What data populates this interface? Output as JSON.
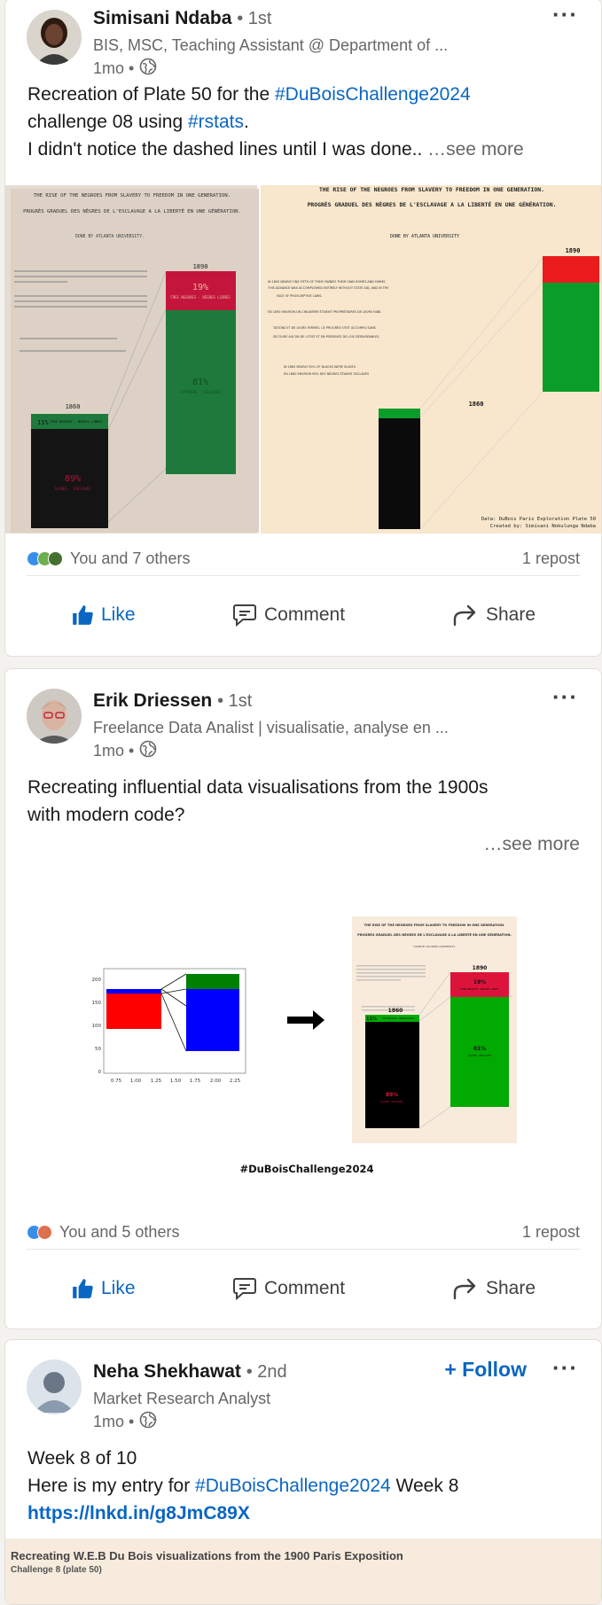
{
  "posts": [
    {
      "author": "Simisani Ndaba",
      "degree": "• 1st",
      "headline": "BIS, MSC, Teaching Assistant @ Department of ...",
      "time": "1mo •",
      "text_line1_a": "Recreation of Plate 50 for the ",
      "text_line1_tag": "#DuBoisChallenge2024",
      "text_line2_a": " challenge 08 using ",
      "text_line2_tag": "#rstats",
      "text_line2_b": ".",
      "text_line3": "I didn't notice the dashed lines until I was done..",
      "see_more": " …see more",
      "image_left": {
        "title1": "THE RISE OF THE NEGROES FROM SLAVERY TO FREEDOM IN ONE GENERATION.",
        "title2": "PROGRÈS GRADUEL DES NÈGRES DE L'ESCLAVAGE A LA LIBERTÉ EN UNE GÉNÉRATION.",
        "done_by": "DONE BY ATLANTA UNIVERSITY.",
        "year_1890": "1890",
        "year_1860": "1860",
        "pct_19": "19%",
        "label_19": "FREE NEGROES · NÈGRES LIBRES",
        "pct_81": "81%",
        "label_81": "CITOYENS · ESCLAVES",
        "pct_11": "11%",
        "label_11": "FREE NEGROES · NÈGRES LIBRES",
        "pct_89": "89%",
        "label_89": "SLAVES · ESCLAVES"
      },
      "image_right": {
        "title1": "THE RISE OF THE NEGROES FROM SLAVERY TO FREEDOM IN ONE GENERATION.",
        "title2": "PROGRÈS GRADUEL DES NÈGRES DE L'ESCLAVAGE A LA LIBERTÉ EN UNE GÉNÉRATION.",
        "done_by": "DONE BY ATLANTA UNIVERSITY",
        "year_1890": "1890",
        "year_1860": "1860",
        "para1": "IN 1890 NEARLY ONE FIFTH OF THEM OWNED THEIR OWN HOMES AND FARMS.",
        "para2": "THIS ADVANCE WAS ACCOMPLISHED ENTIRELY WITHOUT STATE AID, AND IN THE",
        "para3": "FACE OF PROSCRIPTIVE LAWS.",
        "para4": "EN 1890 ENVIRON UN CINQUIÈME ÉTAIENT PROPRIÉTAIRES DE LEURS HABI-",
        "para5": "TATIONS ET DE LEURS FERMES. CE PROGRÈS S'EST ACCOMPLI SANS",
        "para6": "SECOURS AUCUN DE L'ETAT ET EN PRÉSENCE DE LOIS DÉFAVORABLES.",
        "para7": "IN 1860 NEARLY 90% OF BLACKS WERE SLAVES.",
        "para8": "EN 1860 ENVIRON 90% DES NÈGRES ÉTAIENT ESCLAVES",
        "credit1": "Data: DuBois Paris Exploration Plate 50",
        "credit2": "Created by: Simisani Nokulunga Ndaba"
      },
      "reactions": "You and 7 others",
      "reposts": "1 repost"
    },
    {
      "author": "Erik Driessen",
      "degree": "• 1st",
      "headline": "Freelance Data Analist | visualisatie, analyse en ...",
      "time": "1mo •",
      "text_line1": "Recreating influential data visualisations from the 1900s",
      "text_line2": "with modern code?",
      "see_more": "…see more",
      "mini_chart": {
        "x_ticks": [
          "0.75",
          "1.00",
          "1.25",
          "1.50",
          "1.75",
          "2.00",
          "2.25"
        ],
        "y_ticks": [
          "0",
          "50",
          "100",
          "150",
          "200"
        ]
      },
      "poster": {
        "title1": "THE RISE OF THE NEGROES FROM SLAVERY TO FREEDOM IN ONE GENERATION.",
        "title2": "PROGRÈS GRADUEL DES NÈGRES DE L'ESCLAVAGE A LA LIBERTÉ EN UNE GÉNÉRATION.",
        "done_by": "DONE BY ATLANTA UNIVERSITY.",
        "year_1890": "1890",
        "year_1860": "1860",
        "pct_19": "19%",
        "label_19": "FREE NEGROES · NÈGRES LIBRES",
        "pct_81": "81%",
        "label_81": "SLAVES · ESCLAVES",
        "pct_11": "11%",
        "label_11": "FREE NEGROES · NÈGRES LIBRES",
        "pct_89": "89%",
        "label_89": "SLAVES · ESCLAVES"
      },
      "hashtag_caption": "#DuBoisChallenge2024",
      "reactions": "You and 5 others",
      "reposts": "1 repost"
    },
    {
      "author": "Neha Shekhawat",
      "degree": "• 2nd",
      "headline": "Market Research Analyst",
      "time": "1mo •",
      "follow": "+ Follow",
      "text_line1": "Week 8 of 10",
      "text_line2_a": "Here is my entry for ",
      "text_line2_tag": "#DuBoisChallenge2024",
      "text_line2_b": " Week 8",
      "text_line3_link": "https://lnkd.in/g8JmC89X",
      "preview_title": "Recreating W.E.B Du Bois visualizations from the 1900 Paris Exposition",
      "preview_sub": "Challenge 8 (plate 50)"
    }
  ],
  "actions": {
    "like": "Like",
    "comment": "Comment",
    "share": "Share"
  },
  "colors": {
    "accent": "#0a66c2",
    "dubois_green": "#00853f",
    "dubois_red": "#dc143c",
    "dubois_black": "#111111",
    "parchment": "#f7e6cf"
  }
}
